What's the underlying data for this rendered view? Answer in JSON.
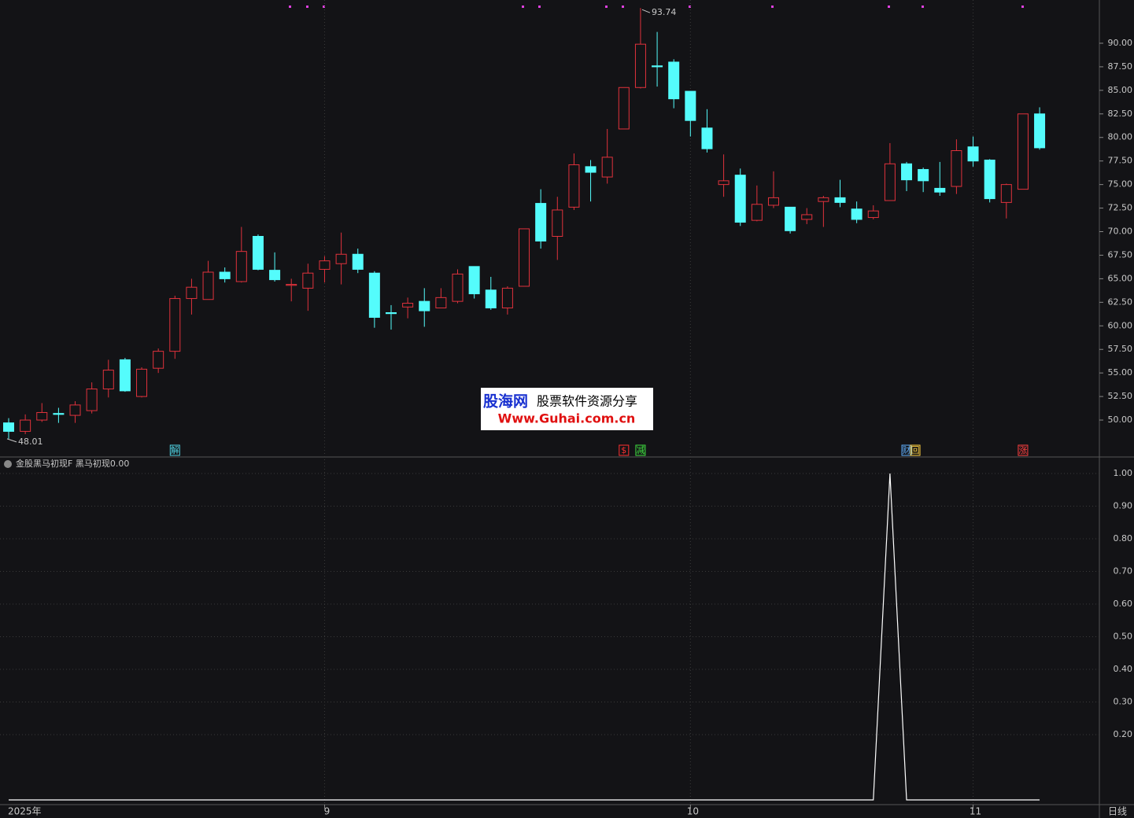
{
  "chart_data": [
    {
      "type": "candlestick",
      "categories": [
        "2025年",
        null,
        null,
        null,
        null,
        null,
        null,
        null,
        null,
        null,
        null,
        null,
        null,
        null,
        null,
        null,
        null,
        null,
        null,
        "9",
        null,
        null,
        null,
        null,
        null,
        null,
        null,
        null,
        null,
        null,
        null,
        null,
        null,
        null,
        null,
        null,
        null,
        null,
        null,
        null,
        null,
        "10",
        null,
        null,
        null,
        null,
        null,
        null,
        null,
        null,
        null,
        null,
        null,
        null,
        null,
        null,
        null,
        null,
        "11",
        null,
        null,
        null,
        null
      ],
      "open": [
        49.7,
        48.8,
        50.0,
        50.7,
        50.5,
        51.0,
        53.3,
        56.4,
        52.5,
        55.5,
        57.3,
        62.9,
        62.8,
        65.7,
        64.7,
        69.5,
        65.9,
        64.3,
        64.0,
        66.0,
        66.6,
        67.6,
        65.6,
        61.4,
        62.0,
        62.6,
        61.9,
        62.6,
        66.3,
        63.8,
        61.9,
        64.2,
        73.0,
        69.5,
        72.6,
        76.9,
        75.8,
        80.9,
        85.3,
        87.6,
        88.0,
        84.9,
        81.0,
        75.0,
        76.0,
        71.2,
        72.8,
        72.6,
        71.3,
        73.2,
        73.6,
        72.4,
        71.5,
        73.3,
        77.2,
        76.6,
        74.6,
        74.8,
        79.0,
        77.6,
        73.1,
        74.5,
        82.5
      ],
      "high": [
        50.2,
        50.6,
        51.8,
        51.3,
        52.0,
        54.0,
        56.4,
        56.6,
        55.6,
        57.6,
        63.2,
        65.0,
        66.9,
        66.2,
        70.5,
        69.7,
        67.8,
        65.0,
        66.6,
        67.4,
        69.9,
        68.2,
        65.8,
        62.2,
        63.0,
        64.0,
        64.0,
        66.0,
        66.3,
        65.2,
        64.2,
        70.3,
        74.5,
        73.7,
        78.3,
        77.6,
        80.9,
        85.3,
        93.74,
        91.2,
        88.3,
        84.9,
        83.0,
        78.2,
        76.7,
        74.9,
        76.4,
        72.6,
        72.5,
        73.8,
        75.5,
        73.2,
        72.8,
        79.4,
        77.4,
        76.8,
        77.4,
        79.8,
        80.1,
        77.7,
        75.1,
        82.5,
        83.2
      ],
      "low": [
        48.01,
        48.5,
        49.8,
        49.7,
        49.7,
        50.7,
        52.4,
        53.0,
        52.4,
        55.0,
        56.5,
        61.2,
        62.8,
        64.6,
        64.6,
        65.9,
        64.7,
        62.6,
        61.6,
        64.6,
        64.4,
        65.6,
        59.8,
        59.6,
        60.8,
        59.9,
        61.9,
        62.4,
        62.9,
        61.7,
        61.2,
        64.2,
        68.2,
        67.0,
        72.3,
        73.2,
        75.1,
        80.9,
        85.2,
        85.4,
        83.1,
        80.1,
        78.4,
        73.7,
        70.6,
        71.1,
        72.5,
        69.8,
        70.8,
        70.5,
        72.6,
        70.9,
        71.3,
        73.3,
        74.3,
        74.2,
        73.8,
        74.0,
        76.9,
        73.1,
        71.4,
        74.5,
        78.7
      ],
      "close": [
        48.8,
        50.0,
        50.8,
        50.6,
        51.6,
        53.3,
        55.3,
        53.1,
        55.4,
        57.3,
        62.9,
        64.1,
        65.7,
        65.0,
        67.9,
        66.0,
        64.9,
        64.4,
        65.6,
        66.9,
        67.6,
        66.0,
        60.9,
        61.3,
        62.4,
        61.6,
        63.0,
        65.5,
        63.4,
        61.9,
        64.0,
        70.3,
        69.0,
        72.3,
        77.1,
        76.3,
        77.9,
        85.3,
        89.9,
        87.5,
        84.1,
        81.8,
        78.8,
        75.4,
        71.0,
        72.9,
        73.6,
        70.1,
        71.8,
        73.6,
        73.1,
        71.3,
        72.2,
        77.2,
        75.5,
        75.4,
        74.2,
        78.6,
        77.5,
        73.5,
        75.0,
        82.5,
        78.9
      ],
      "up_color": "#e0323c",
      "down_color": "#54fcfc",
      "ylim": [
        46.08,
        94.59
      ],
      "yticks": [
        {
          "value": 50,
          "label": "50.00"
        },
        {
          "value": 52.5,
          "label": "52.50"
        },
        {
          "value": 55,
          "label": "55.00"
        },
        {
          "value": 57.5,
          "label": "57.50"
        },
        {
          "value": 60,
          "label": "60.00"
        },
        {
          "value": 62.5,
          "label": "62.50"
        },
        {
          "value": 65,
          "label": "65.00"
        },
        {
          "value": 67.5,
          "label": "67.50"
        },
        {
          "value": 70,
          "label": "70.00"
        },
        {
          "value": 72.5,
          "label": "72.50"
        },
        {
          "value": 75,
          "label": "75.00"
        },
        {
          "value": 77.5,
          "label": "77.50"
        },
        {
          "value": 80,
          "label": "80.00"
        },
        {
          "value": 82.5,
          "label": "82.50"
        },
        {
          "value": 85,
          "label": "85.00"
        },
        {
          "value": 87.5,
          "label": "87.50"
        },
        {
          "value": 90,
          "label": "90.00"
        }
      ],
      "signals": {
        "10": [
          {
            "text": "解",
            "color": "#4fd0e0"
          }
        ],
        "37": [
          {
            "text": "$",
            "color": "#ff3030"
          }
        ],
        "38": [
          {
            "text": "减",
            "color": "#40e040"
          }
        ],
        "54": [
          {
            "text": "财",
            "color": "#60b0ff"
          },
          {
            "text": "回",
            "color": "#ffd040"
          }
        ],
        "61": [
          {
            "text": "涨",
            "color": "#ff4040"
          }
        ]
      },
      "period": "日线",
      "watermark": {
        "brand": "股海网",
        "slogan": "股票软件资源分享",
        "url": "Www.Guhai.com.cn"
      }
    },
    {
      "type": "line",
      "title": "金股黑马初现F",
      "series": [
        {
          "name": "黑马初现",
          "color": "#ffffff",
          "readout": "0.00",
          "values": [
            0,
            0,
            0,
            0,
            0,
            0,
            0,
            0,
            0,
            0,
            0,
            0,
            0,
            0,
            0,
            0,
            0,
            0,
            0,
            0,
            0,
            0,
            0,
            0,
            0,
            0,
            0,
            0,
            0,
            0,
            0,
            0,
            0,
            0,
            0,
            0,
            0,
            0,
            0,
            0,
            0,
            0,
            0,
            0,
            0,
            0,
            0,
            0,
            0,
            0,
            0,
            0,
            0,
            1,
            0,
            0,
            0,
            0,
            0,
            0,
            0,
            0,
            0
          ]
        }
      ],
      "ylim": [
        0,
        1
      ],
      "yticks": [
        {
          "value": 0.2,
          "label": "0.20"
        },
        {
          "value": 0.3,
          "label": "0.30"
        },
        {
          "value": 0.4,
          "label": "0.40"
        },
        {
          "value": 0.5,
          "label": "0.50"
        },
        {
          "value": 0.6,
          "label": "0.60"
        },
        {
          "value": 0.7,
          "label": "0.70"
        },
        {
          "value": 0.8,
          "label": "0.80"
        },
        {
          "value": 0.9,
          "label": "0.90"
        },
        {
          "value": 1,
          "label": "1.00"
        }
      ]
    }
  ]
}
